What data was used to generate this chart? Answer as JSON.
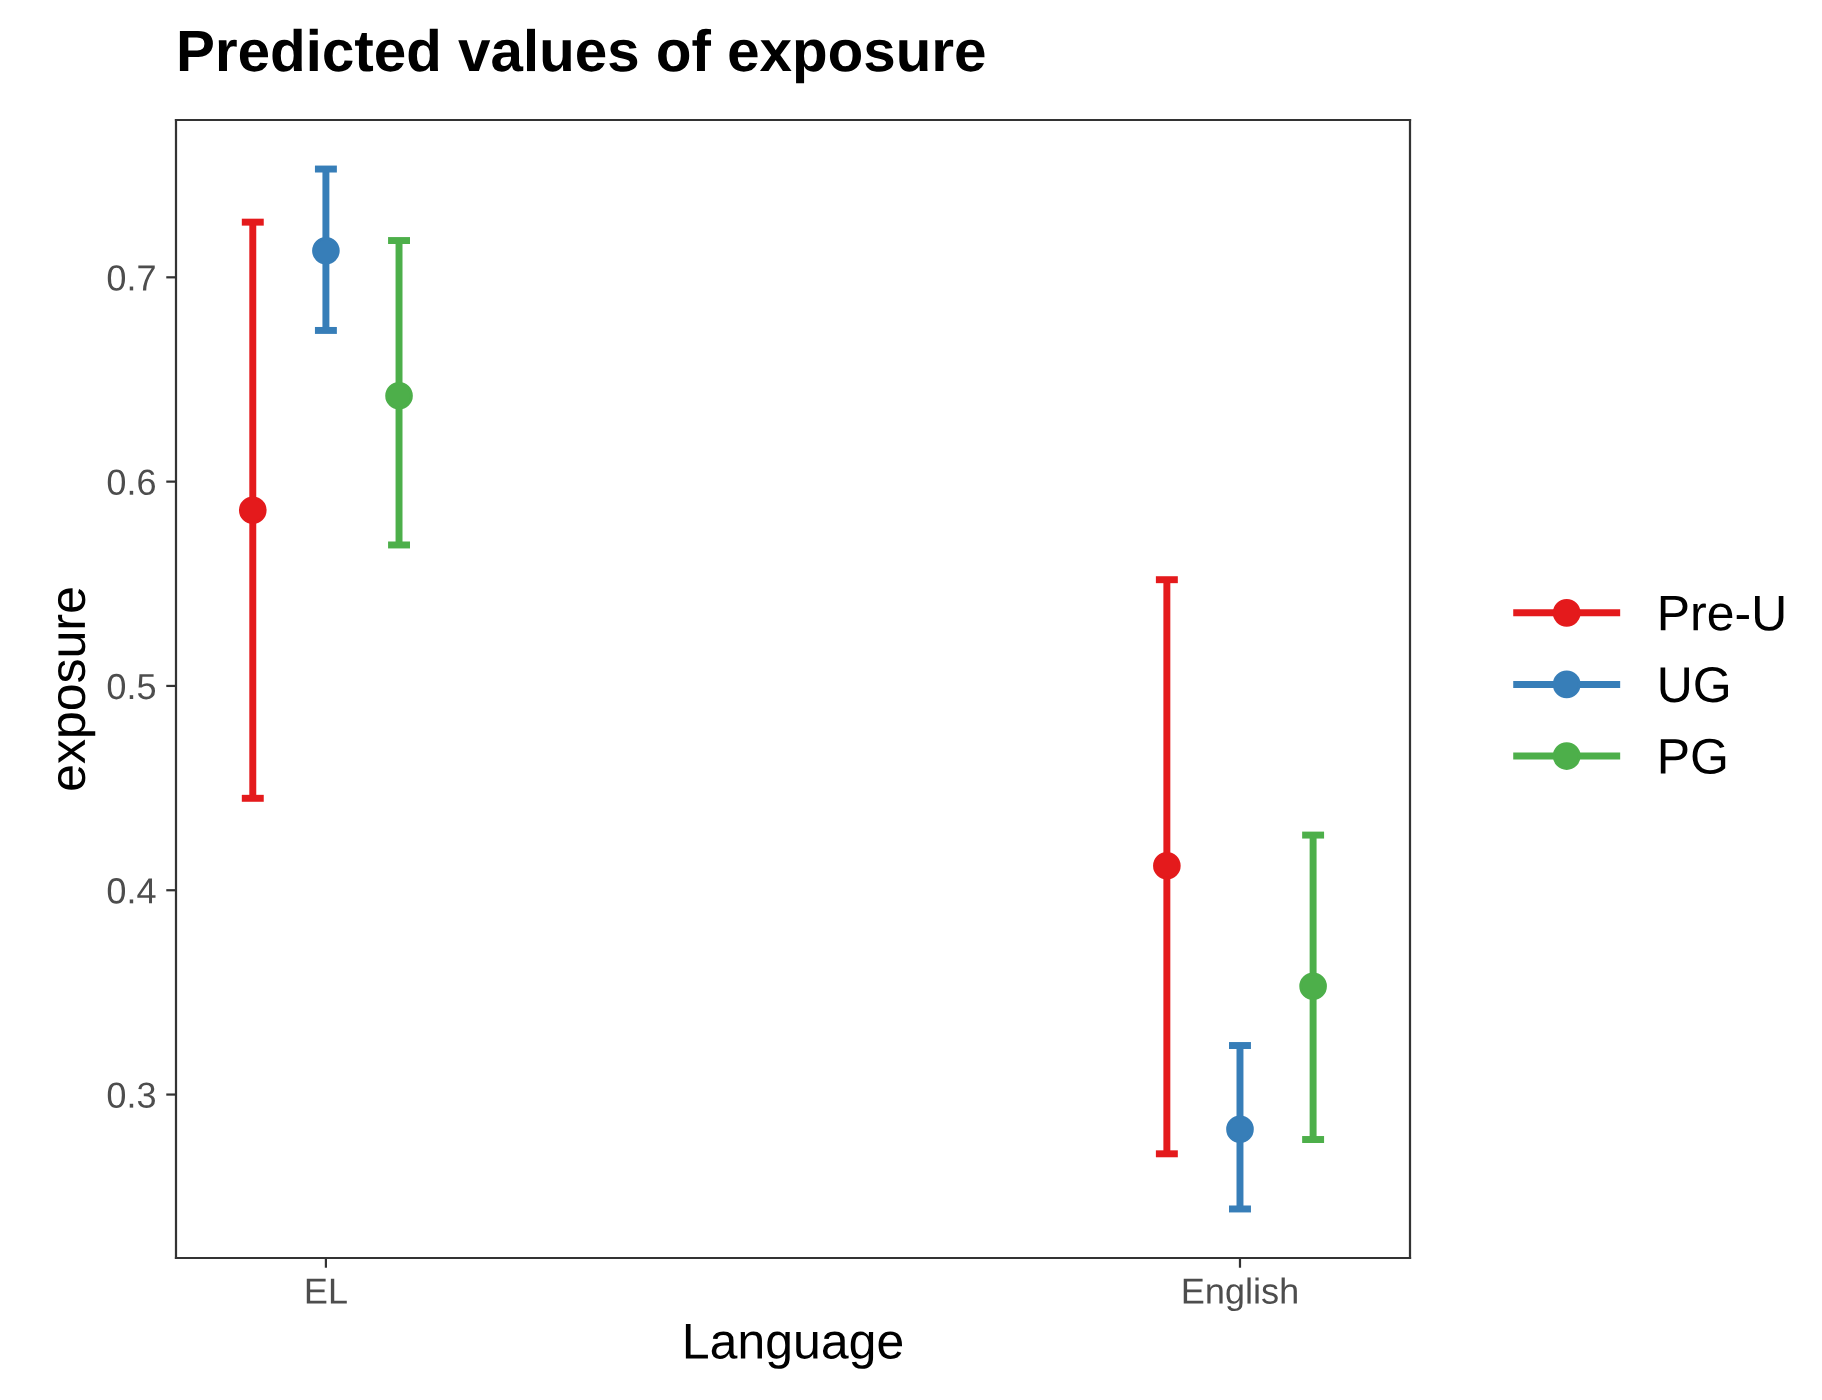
{
  "chart_data": {
    "type": "scatter",
    "title": "Predicted values of exposure",
    "xlabel": "Language",
    "ylabel": "exposure",
    "categories": [
      "EL",
      "English"
    ],
    "series": [
      {
        "name": "Pre-U",
        "color": "#e41a1c",
        "values": [
          0.586,
          0.412
        ],
        "errors": [
          [
            0.445,
            0.727
          ],
          [
            0.271,
            0.552
          ]
        ]
      },
      {
        "name": "UG",
        "color": "#377eb8",
        "values": [
          0.713,
          0.283
        ],
        "errors": [
          [
            0.674,
            0.753
          ],
          [
            0.244,
            0.324
          ]
        ]
      },
      {
        "name": "PG",
        "color": "#4daf4a",
        "values": [
          0.642,
          0.353
        ],
        "errors": [
          [
            0.569,
            0.718
          ],
          [
            0.278,
            0.427
          ]
        ]
      }
    ],
    "ylim": [
      0.22,
      0.777
    ],
    "yticks": [
      0.3,
      0.4,
      0.5,
      0.6,
      0.7
    ],
    "grid": false,
    "legend": "right",
    "marker": "circle"
  }
}
